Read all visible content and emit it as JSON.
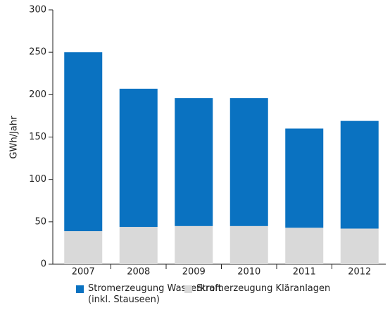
{
  "chart_data": {
    "type": "stacked_bar",
    "y_label": "GWh/Jahr",
    "categories": [
      "2007",
      "2008",
      "2009",
      "2010",
      "2011",
      "2012"
    ],
    "series": [
      {
        "name": "Stromerzeugung Wasserkraft\n(inkl. Stauseen)",
        "color": "#0a72c1",
        "values": [
          211,
          163,
          151,
          151,
          117,
          127
        ]
      },
      {
        "name": "Stromerzeugung Kläranlagen",
        "color": "#d9d9d9",
        "values": [
          39,
          44,
          45,
          45,
          43,
          42
        ]
      }
    ],
    "ylim": [
      0,
      300
    ],
    "yticks": [
      0,
      50,
      100,
      150,
      200,
      250,
      300
    ],
    "grid": false
  }
}
